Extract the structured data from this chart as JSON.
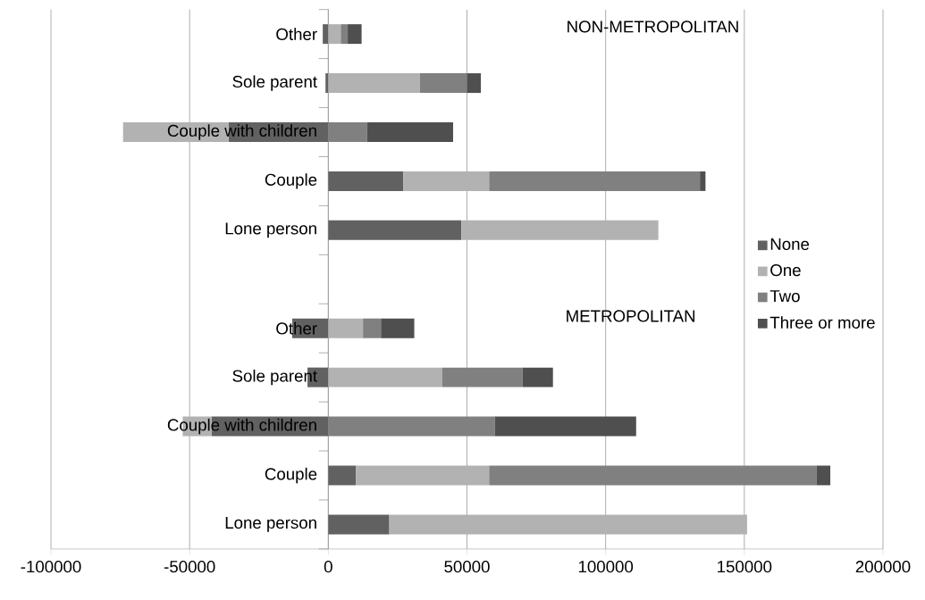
{
  "chart_data": {
    "type": "bar",
    "orientation": "horizontal",
    "stacked": true,
    "categories": [
      "Other",
      "Sole parent",
      "Couple with children",
      "Couple",
      "Lone person",
      null,
      "Other",
      "Sole parent",
      "Couple with children",
      "Couple",
      "Lone person"
    ],
    "series": [
      {
        "name": "None",
        "color": "#616161",
        "values": [
          -2000,
          -1000,
          -36000,
          27000,
          48000,
          null,
          -13000,
          -7500,
          -42000,
          10000,
          22000
        ]
      },
      {
        "name": "One",
        "color": "#b2b2b2",
        "values": [
          4500,
          33000,
          -38000,
          31000,
          71000,
          null,
          12500,
          41000,
          -10500,
          48000,
          129000
        ]
      },
      {
        "name": "Two",
        "color": "#808080",
        "values": [
          2500,
          17000,
          14000,
          76000,
          null,
          null,
          6500,
          29000,
          60000,
          118000,
          null
        ]
      },
      {
        "name": "Three or more",
        "color": "#4f4f4f",
        "values": [
          5000,
          5000,
          31000,
          2000,
          null,
          null,
          12000,
          11000,
          51000,
          5000,
          null
        ]
      }
    ],
    "xlim": [
      -100000,
      200000
    ],
    "xticks": [
      -100000,
      -50000,
      0,
      50000,
      100000,
      150000,
      200000
    ],
    "grid": "x",
    "legend": "right",
    "annotations": [
      "NON-METROPOLITAN",
      "METROPOLITAN"
    ]
  }
}
